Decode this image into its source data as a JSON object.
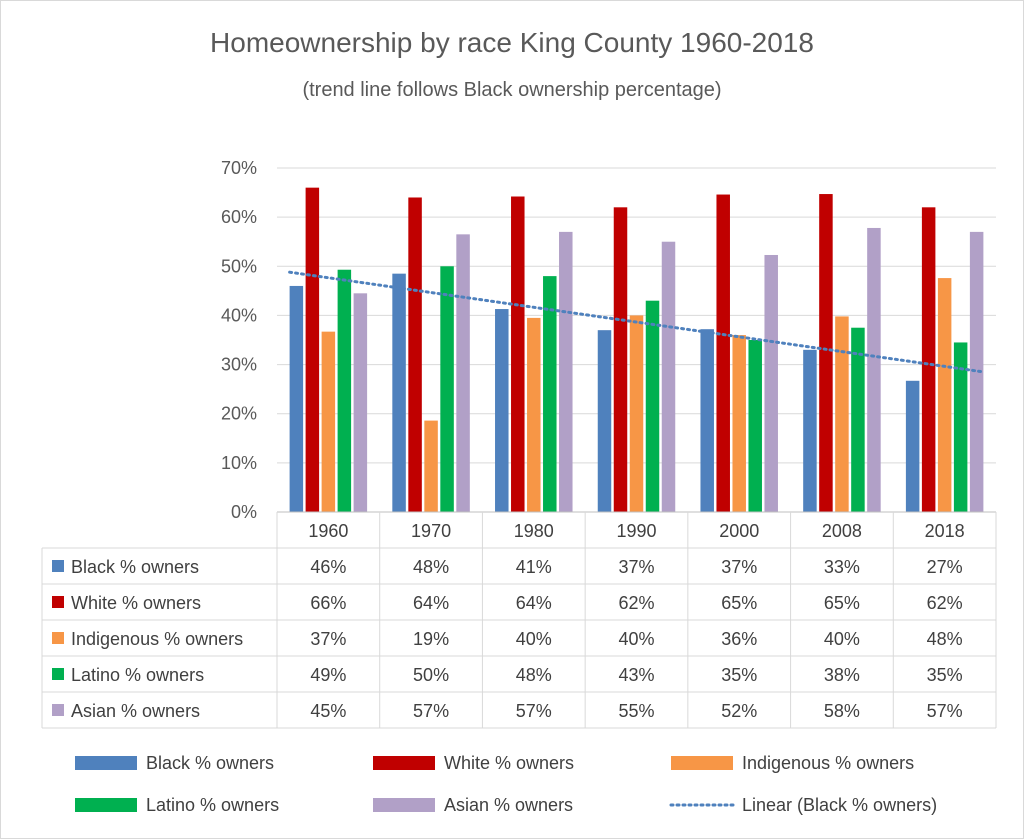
{
  "chart_data": {
    "type": "bar",
    "title": "Homeownership by race King County 1960-2018",
    "subtitle": "(trend line follows Black ownership percentage)",
    "categories": [
      "1960",
      "1970",
      "1980",
      "1990",
      "2000",
      "2008",
      "2018"
    ],
    "ylim": [
      0,
      70
    ],
    "yticks": [
      0,
      10,
      20,
      30,
      40,
      50,
      60,
      70
    ],
    "ytick_labels": [
      "0%",
      "10%",
      "20%",
      "30%",
      "40%",
      "50%",
      "60%",
      "70%"
    ],
    "grid": true,
    "legend_position": "bottom",
    "series": [
      {
        "name": "Black % owners",
        "color": "#4f81bd",
        "values": [
          46,
          48.5,
          41.3,
          37,
          37.2,
          33,
          26.7
        ],
        "labels": [
          "46%",
          "48%",
          "41%",
          "37%",
          "37%",
          "33%",
          "27%"
        ]
      },
      {
        "name": "White  % owners",
        "color": "#c00000",
        "values": [
          66,
          64,
          64.2,
          62,
          64.6,
          64.7,
          62
        ],
        "labels": [
          "66%",
          "64%",
          "64%",
          "62%",
          "65%",
          "65%",
          "62%"
        ]
      },
      {
        "name": "Indigenous  % owners",
        "color": "#f79646",
        "values": [
          36.7,
          18.6,
          39.5,
          40,
          36,
          39.8,
          47.6
        ],
        "labels": [
          "37%",
          "19%",
          "40%",
          "40%",
          "36%",
          "40%",
          "48%"
        ]
      },
      {
        "name": "Latino  % owners",
        "color": "#00b050",
        "values": [
          49.3,
          50,
          48,
          43,
          35,
          37.5,
          34.5
        ],
        "labels": [
          "49%",
          "50%",
          "48%",
          "43%",
          "35%",
          "38%",
          "35%"
        ]
      },
      {
        "name": "Asian  % owners",
        "color": "#b1a0c7",
        "values": [
          44.5,
          56.5,
          57,
          55,
          52.3,
          57.8,
          57
        ],
        "labels": [
          "45%",
          "57%",
          "57%",
          "55%",
          "52%",
          "58%",
          "57%"
        ]
      }
    ],
    "trendline": {
      "name": "Linear (Black % owners)",
      "color": "#4f81bd",
      "style": "dotted",
      "start": 48.8,
      "end": 28.5
    }
  }
}
